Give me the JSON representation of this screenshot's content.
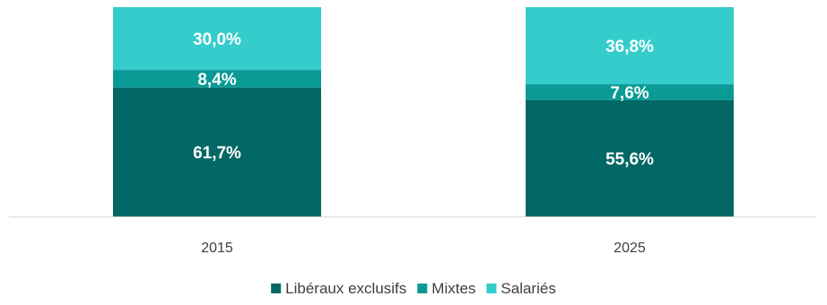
{
  "chart_data": {
    "type": "bar",
    "stacked": true,
    "categories": [
      "2015",
      "2025"
    ],
    "series": [
      {
        "name": "Libéraux exclusifs",
        "values": [
          61.7,
          55.6
        ],
        "labels": [
          "61,7%",
          "55,6%"
        ],
        "color": "#036865"
      },
      {
        "name": "Mixtes",
        "values": [
          8.4,
          7.6
        ],
        "labels": [
          "8,4%",
          "7,6%"
        ],
        "color": "#0a9a95"
      },
      {
        "name": "Salariés",
        "values": [
          30.0,
          36.8
        ],
        "labels": [
          "30,0%",
          "36,8%"
        ],
        "color": "#35cccc"
      }
    ],
    "ylim": [
      0,
      100
    ],
    "legend": "bottom",
    "grid": false
  }
}
